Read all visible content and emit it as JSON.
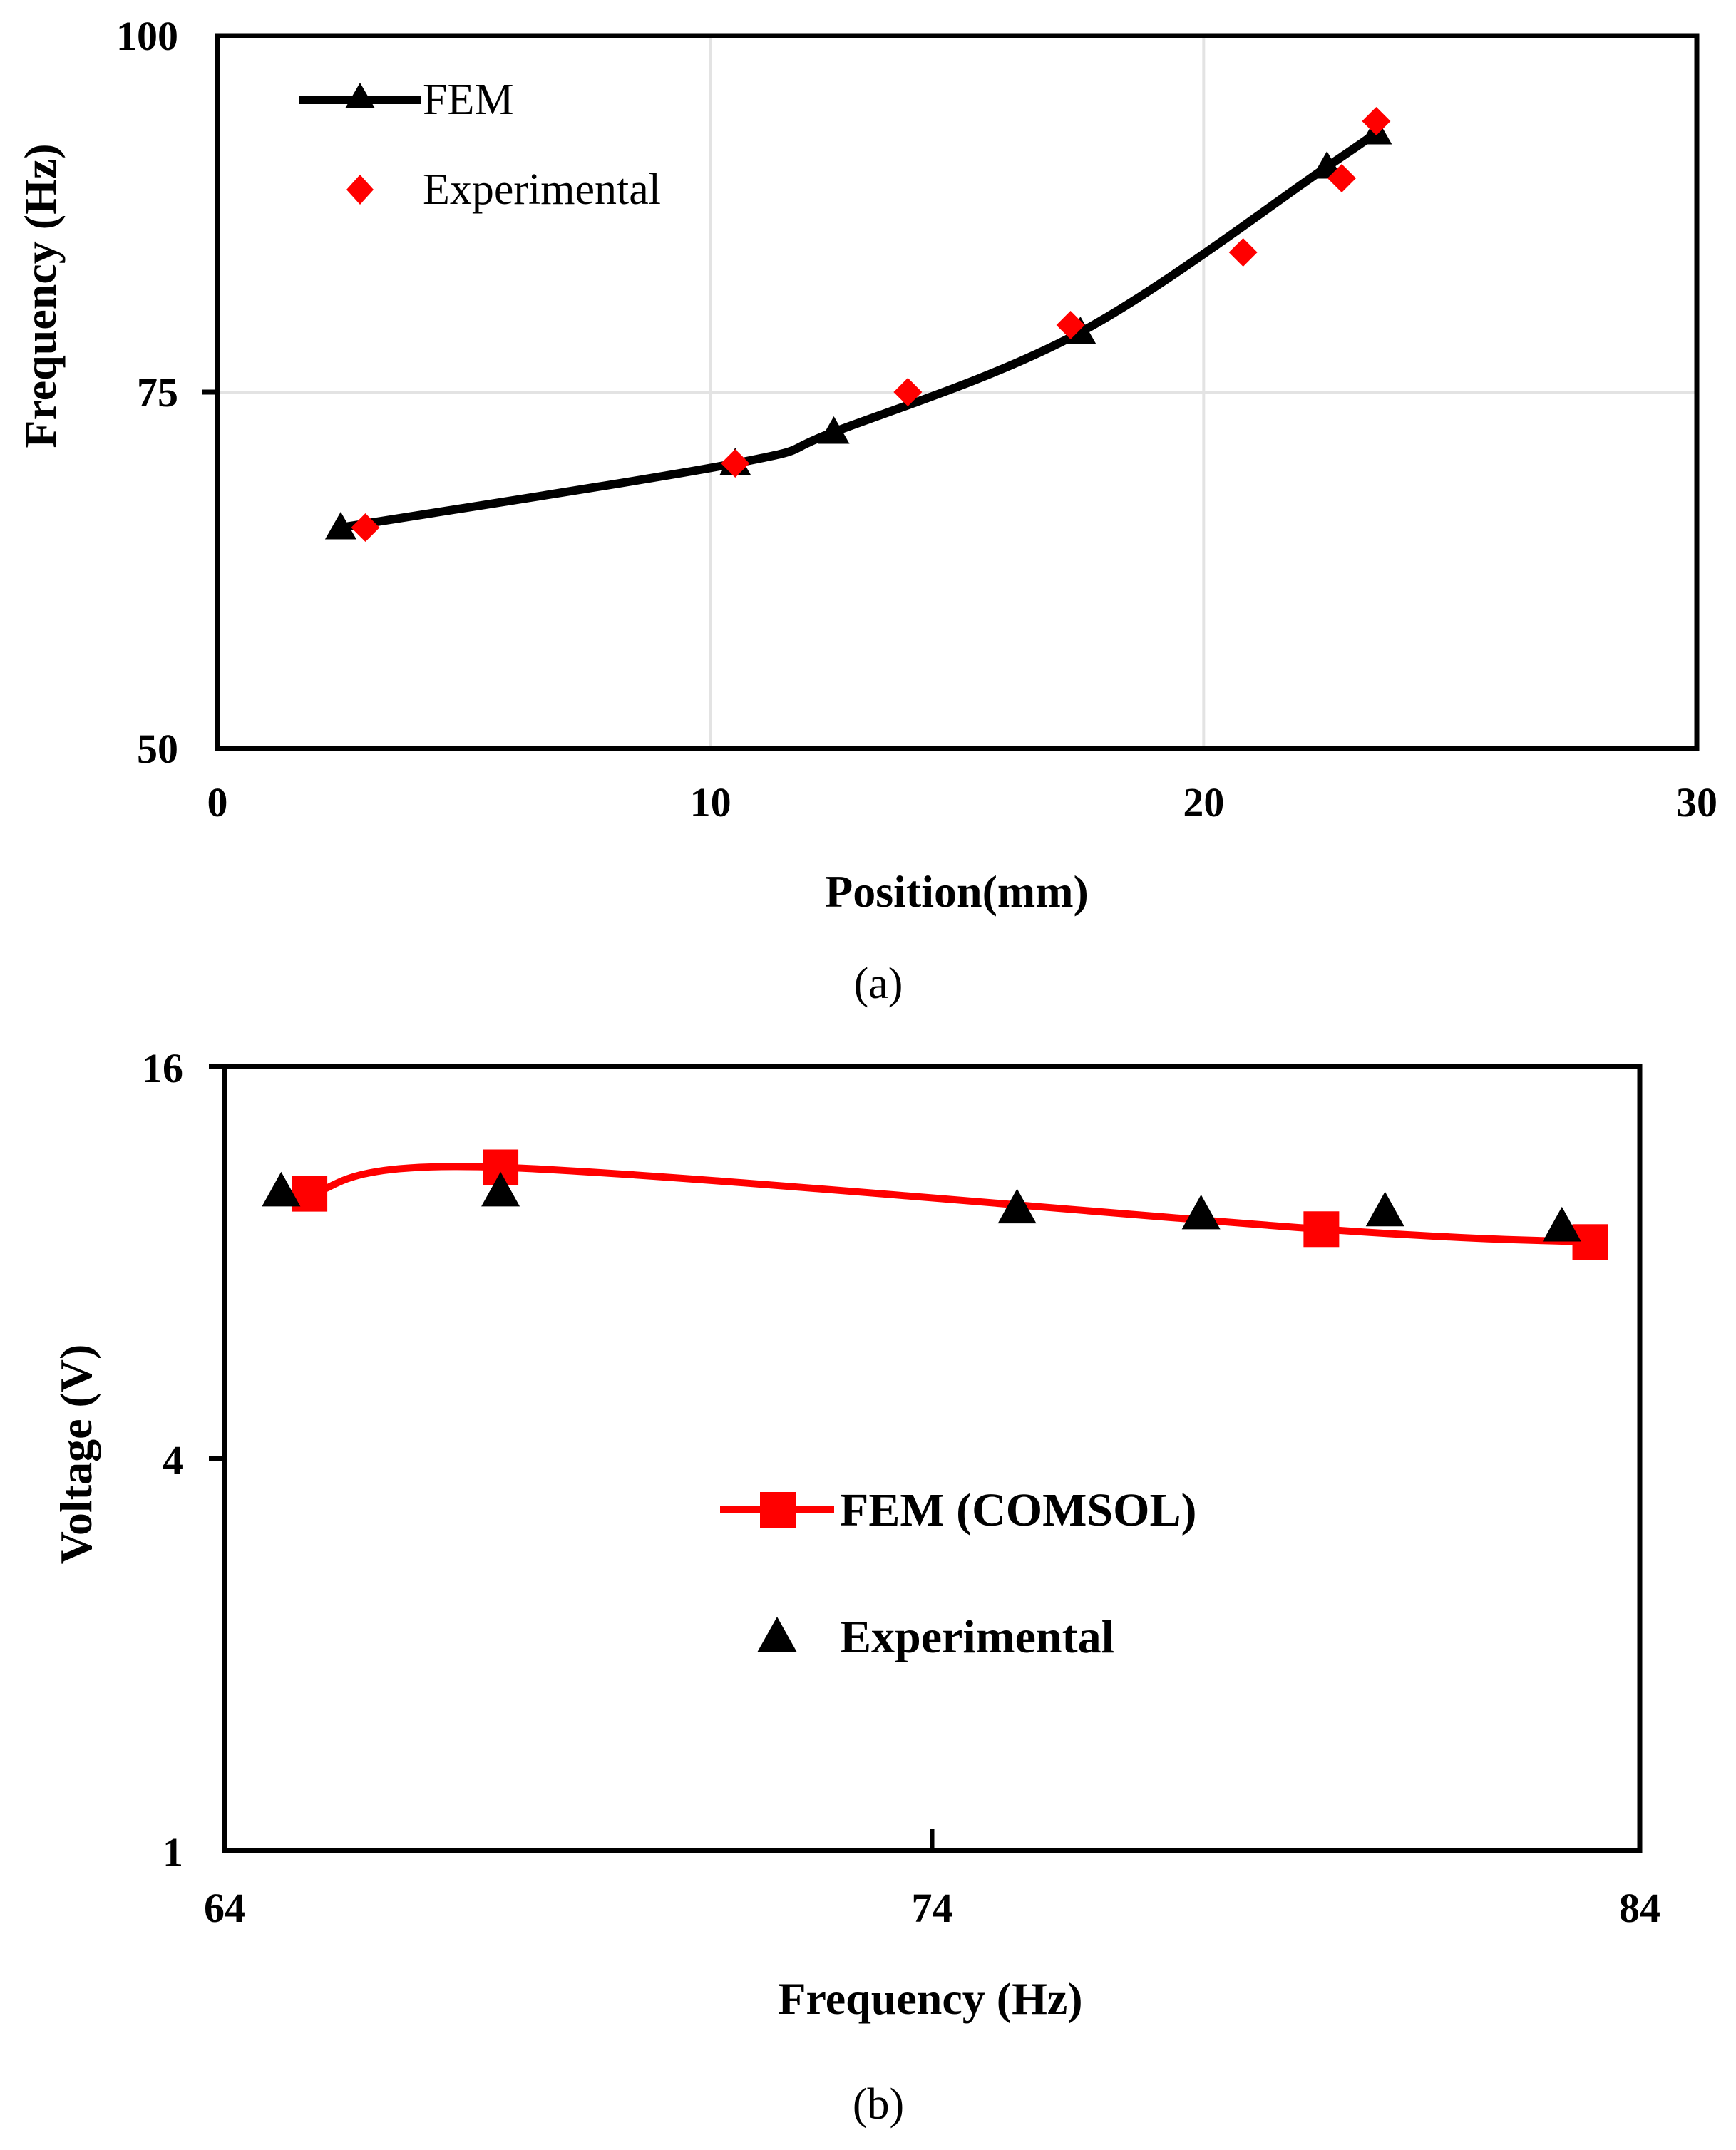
{
  "chart_data": [
    {
      "type": "line",
      "panel_label": "(a)",
      "title": "",
      "xlabel": "Position(mm)",
      "ylabel": "Frequency (Hz)",
      "xlim": [
        0,
        30
      ],
      "ylim": [
        50,
        100
      ],
      "x_ticks": [
        "0",
        "10",
        "20",
        "30"
      ],
      "y_ticks": [
        "50",
        "75",
        "100"
      ],
      "grid": true,
      "legend_position": "top-left",
      "series": [
        {
          "name": "FEM",
          "style": "line-with-triangle-markers",
          "color": "#000000",
          "x": [
            2.5,
            10.5,
            12.5,
            17.5,
            22.5,
            23.5
          ],
          "y": [
            65.5,
            70,
            72.2,
            79.2,
            90.8,
            93.2
          ]
        },
        {
          "name": "Experimental",
          "style": "diamond-markers",
          "color": "#ff0000",
          "x": [
            3,
            10.5,
            14,
            17.3,
            20.8,
            22.8,
            23.5
          ],
          "y": [
            65.5,
            70,
            75,
            79.7,
            84.8,
            90,
            94
          ]
        }
      ]
    },
    {
      "type": "line",
      "panel_label": "(b)",
      "title": "",
      "xlabel": "Frequency (Hz)",
      "ylabel": "Voltage (V)",
      "xlim": [
        64,
        84
      ],
      "ylim": [
        1,
        16
      ],
      "y_scale": "log2",
      "x_ticks": [
        "64",
        "74",
        "84"
      ],
      "y_ticks": [
        "1",
        "4",
        "16"
      ],
      "grid": true,
      "legend_position": "center",
      "series": [
        {
          "name": "FEM (COMSOL)",
          "style": "line-with-square-markers",
          "color": "#ff0000",
          "x": [
            65.2,
            67.9,
            79.5,
            83.3
          ],
          "y": [
            10.2,
            11.2,
            9.0,
            8.6
          ]
        },
        {
          "name": "Experimental",
          "style": "triangle-markers",
          "color": "#000000",
          "x": [
            64.8,
            67.9,
            75.2,
            77.8,
            80.4,
            82.9
          ],
          "y": [
            10.3,
            10.3,
            9.7,
            9.5,
            9.6,
            9.1
          ]
        }
      ]
    }
  ]
}
